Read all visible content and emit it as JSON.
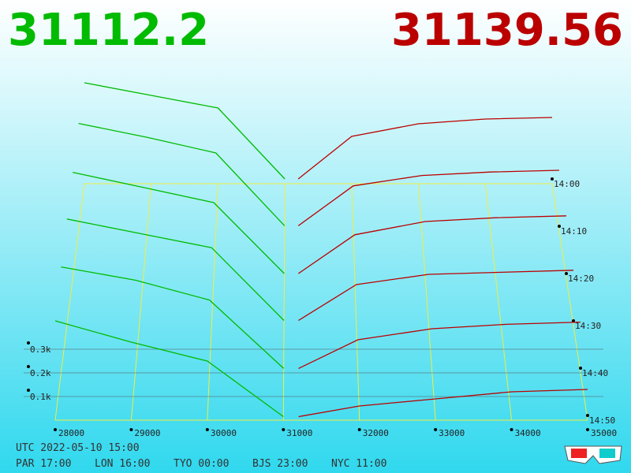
{
  "chart_data": {
    "type": "depth3d",
    "bid_price": "31112.2",
    "ask_price": "31139.56",
    "bid_color": "#00bb00",
    "ask_color": "#bb0000",
    "xlim": [
      28000,
      35000
    ],
    "xticks": [
      28000,
      29000,
      30000,
      31000,
      32000,
      33000,
      34000,
      35000
    ],
    "depth_ticks": [
      {
        "value": 100,
        "label": "0.1k"
      },
      {
        "value": 200,
        "label": "0.2k"
      },
      {
        "value": 300,
        "label": "0.3k"
      }
    ],
    "times": [
      "14:00",
      "14:10",
      "14:20",
      "14:30",
      "14:40",
      "14:50"
    ],
    "bid_prices": [
      28000,
      29000,
      30000,
      31000
    ],
    "ask_prices": [
      31200,
      32000,
      33000,
      34000,
      35000
    ],
    "bids": [
      [
        640,
        560,
        480,
        30
      ],
      [
        620,
        540,
        450,
        30
      ],
      [
        560,
        480,
        400,
        25
      ],
      [
        520,
        450,
        380,
        25
      ],
      [
        480,
        420,
        330,
        20
      ],
      [
        420,
        330,
        250,
        15
      ]
    ],
    "asks": [
      [
        30,
        300,
        380,
        410,
        420
      ],
      [
        30,
        260,
        320,
        340,
        350
      ],
      [
        25,
        230,
        300,
        320,
        330
      ],
      [
        25,
        200,
        250,
        260,
        270
      ],
      [
        20,
        150,
        200,
        220,
        230
      ],
      [
        15,
        60,
        90,
        120,
        130
      ]
    ],
    "footer": {
      "utc": "UTC 2022-05-10 15:00",
      "zones": [
        "PAR 17:00",
        "LON 16:00",
        "TYO 00:00",
        "BJS 23:00",
        "NYC 11:00"
      ]
    }
  }
}
